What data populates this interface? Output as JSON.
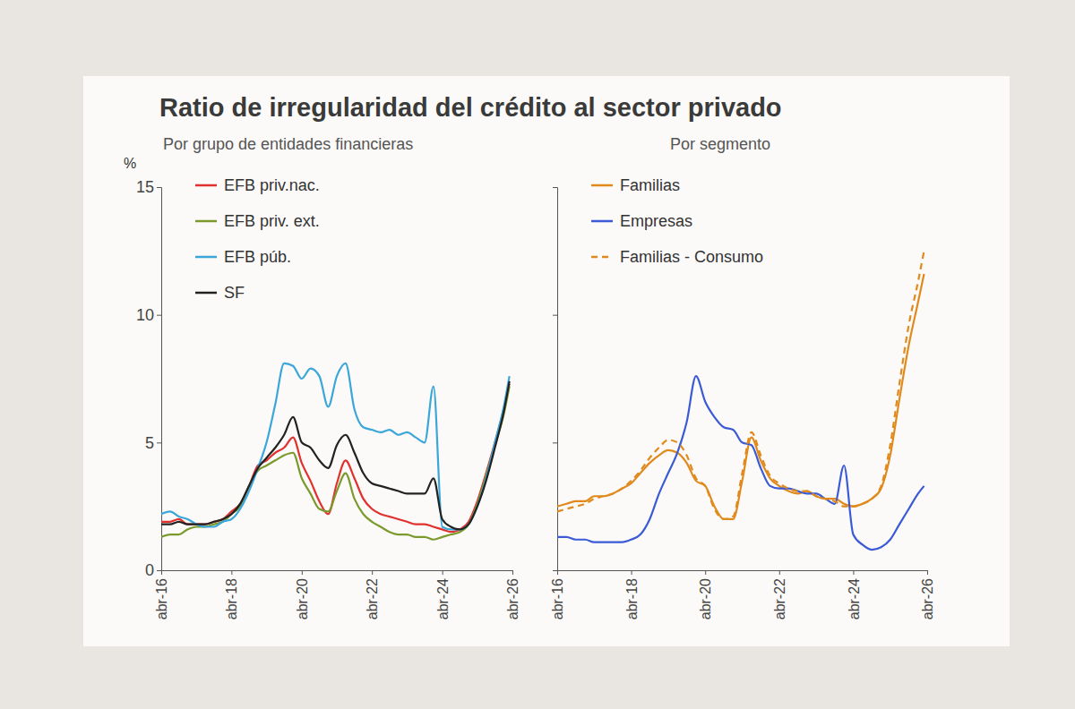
{
  "title": "Ratio de irregularidad del crédito al sector privado",
  "chart_data": [
    {
      "type": "line",
      "subtitle": "Por grupo de entidades financieras",
      "ylabel": "%",
      "x": [
        "2016-04",
        "2016-07",
        "2016-10",
        "2017-01",
        "2017-04",
        "2017-07",
        "2017-10",
        "2018-01",
        "2018-04",
        "2018-07",
        "2018-10",
        "2019-01",
        "2019-04",
        "2019-07",
        "2019-10",
        "2020-01",
        "2020-04",
        "2020-07",
        "2020-10",
        "2021-01",
        "2021-04",
        "2021-07",
        "2021-10",
        "2022-01",
        "2022-04",
        "2022-07",
        "2022-10",
        "2023-01",
        "2023-04",
        "2023-07",
        "2023-10",
        "2024-01",
        "2024-04",
        "2024-07",
        "2024-10",
        "2025-01",
        "2025-04",
        "2025-07",
        "2025-10",
        "2026-01",
        "2026-03"
      ],
      "series": [
        {
          "name": "EFB priv.nac.",
          "color": "#e0312f",
          "values": [
            1.9,
            1.9,
            2.0,
            1.8,
            1.8,
            1.8,
            1.9,
            2.0,
            2.3,
            2.6,
            3.3,
            4.1,
            4.3,
            4.6,
            4.8,
            5.2,
            4.2,
            3.5,
            2.7,
            2.2,
            3.4,
            4.3,
            3.6,
            2.8,
            2.4,
            2.2,
            2.1,
            2.0,
            1.9,
            1.8,
            1.8,
            1.7,
            1.6,
            1.5,
            1.6,
            1.9,
            2.7,
            3.8,
            5.0,
            6.3,
            7.3
          ]
        },
        {
          "name": "EFB priv. ext.",
          "color": "#7a9a2e",
          "values": [
            1.3,
            1.4,
            1.4,
            1.6,
            1.7,
            1.7,
            1.8,
            1.9,
            2.2,
            2.5,
            3.3,
            3.9,
            4.1,
            4.3,
            4.5,
            4.6,
            3.6,
            3.0,
            2.4,
            2.3,
            3.1,
            3.8,
            2.8,
            2.2,
            1.9,
            1.7,
            1.5,
            1.4,
            1.4,
            1.3,
            1.3,
            1.2,
            1.3,
            1.4,
            1.5,
            1.8,
            2.6,
            3.7,
            4.9,
            6.1,
            7.2
          ]
        },
        {
          "name": "EFB púb.",
          "color": "#3aa6d9",
          "values": [
            2.2,
            2.3,
            2.1,
            2.0,
            1.8,
            1.7,
            1.7,
            1.9,
            2.0,
            2.4,
            3.1,
            4.0,
            5.0,
            6.5,
            8.1,
            8.0,
            7.5,
            7.9,
            7.6,
            6.4,
            7.6,
            8.1,
            6.3,
            5.6,
            5.5,
            5.4,
            5.5,
            5.3,
            5.4,
            5.2,
            5.0,
            7.2,
            1.7,
            1.6,
            1.6,
            1.8,
            2.5,
            3.6,
            5.0,
            6.4,
            7.6
          ]
        },
        {
          "name": "SF",
          "color": "#222222",
          "values": [
            1.8,
            1.8,
            1.9,
            1.8,
            1.8,
            1.8,
            1.9,
            2.0,
            2.2,
            2.6,
            3.3,
            4.0,
            4.4,
            4.8,
            5.3,
            6.0,
            5.0,
            4.8,
            4.3,
            4.0,
            4.9,
            5.3,
            4.6,
            3.8,
            3.4,
            3.3,
            3.2,
            3.1,
            3.0,
            3.0,
            3.0,
            3.6,
            2.0,
            1.7,
            1.6,
            1.8,
            2.5,
            3.5,
            4.8,
            6.2,
            7.4
          ]
        }
      ],
      "xlim": [
        "2016-04",
        "2026-04"
      ],
      "xticks": [
        {
          "value": "2016-04",
          "label": "abr-16"
        },
        {
          "value": "2018-04",
          "label": "abr-18"
        },
        {
          "value": "2020-04",
          "label": "abr-20"
        },
        {
          "value": "2022-04",
          "label": "abr-22"
        },
        {
          "value": "2024-04",
          "label": "abr-24"
        },
        {
          "value": "2026-04",
          "label": "abr-26"
        }
      ],
      "ylim": [
        0,
        15
      ],
      "yticks": [
        0,
        5,
        10,
        15
      ],
      "grid": false,
      "legend": "upper left"
    },
    {
      "type": "line",
      "subtitle": "Por segmento",
      "x": [
        "2016-04",
        "2016-07",
        "2016-10",
        "2017-01",
        "2017-04",
        "2017-07",
        "2017-10",
        "2018-01",
        "2018-04",
        "2018-07",
        "2018-10",
        "2019-01",
        "2019-04",
        "2019-07",
        "2019-10",
        "2020-01",
        "2020-04",
        "2020-07",
        "2020-10",
        "2021-01",
        "2021-04",
        "2021-07",
        "2021-10",
        "2022-01",
        "2022-04",
        "2022-07",
        "2022-10",
        "2023-01",
        "2023-04",
        "2023-07",
        "2023-10",
        "2024-01",
        "2024-04",
        "2024-07",
        "2024-10",
        "2025-01",
        "2025-04",
        "2025-07",
        "2025-10",
        "2026-01",
        "2026-03"
      ],
      "series": [
        {
          "name": "Familias",
          "color": "#e08a1e",
          "line_style": "solid",
          "values": [
            2.5,
            2.6,
            2.7,
            2.7,
            2.9,
            2.9,
            3.0,
            3.2,
            3.4,
            3.8,
            4.2,
            4.5,
            4.7,
            4.6,
            4.2,
            3.5,
            3.3,
            2.5,
            2.0,
            2.0,
            3.5,
            5.2,
            4.3,
            3.6,
            3.3,
            3.1,
            3.0,
            3.1,
            2.9,
            2.8,
            2.8,
            2.6,
            2.5,
            2.6,
            2.8,
            3.2,
            4.5,
            6.7,
            8.8,
            10.5,
            11.6
          ]
        },
        {
          "name": "Empresas",
          "color": "#3b5bd6",
          "line_style": "solid",
          "values": [
            1.3,
            1.3,
            1.2,
            1.2,
            1.1,
            1.1,
            1.1,
            1.1,
            1.2,
            1.4,
            2.0,
            3.0,
            3.8,
            4.6,
            5.8,
            7.6,
            6.6,
            6.0,
            5.6,
            5.5,
            5.0,
            4.9,
            4.0,
            3.3,
            3.2,
            3.2,
            3.1,
            3.0,
            3.0,
            2.8,
            2.6,
            4.1,
            1.4,
            1.0,
            0.8,
            0.9,
            1.2,
            1.8,
            2.4,
            3.0,
            3.3
          ]
        },
        {
          "name": "Familias - Consumo",
          "color": "#e08a1e",
          "line_style": "dashed",
          "values": [
            2.3,
            2.4,
            2.5,
            2.6,
            2.8,
            2.9,
            3.0,
            3.2,
            3.5,
            3.9,
            4.4,
            4.8,
            5.1,
            5.0,
            4.5,
            3.6,
            3.3,
            2.4,
            2.0,
            2.1,
            3.8,
            5.4,
            4.5,
            3.7,
            3.4,
            3.2,
            3.1,
            3.1,
            2.9,
            2.8,
            2.7,
            2.5,
            2.5,
            2.6,
            2.8,
            3.3,
            4.9,
            7.3,
            9.6,
            11.3,
            12.5
          ]
        }
      ],
      "xlim": [
        "2016-04",
        "2026-04"
      ],
      "xticks": [
        {
          "value": "2016-04",
          "label": "abr-16"
        },
        {
          "value": "2018-04",
          "label": "abr-18"
        },
        {
          "value": "2020-04",
          "label": "abr-20"
        },
        {
          "value": "2022-04",
          "label": "abr-22"
        },
        {
          "value": "2024-04",
          "label": "abr-24"
        },
        {
          "value": "2026-04",
          "label": "abr-26"
        }
      ],
      "ylim": [
        0,
        15
      ],
      "yticks": [
        0,
        5,
        10,
        15
      ],
      "grid": false,
      "legend": "upper left",
      "tick_labels": "x"
    }
  ]
}
